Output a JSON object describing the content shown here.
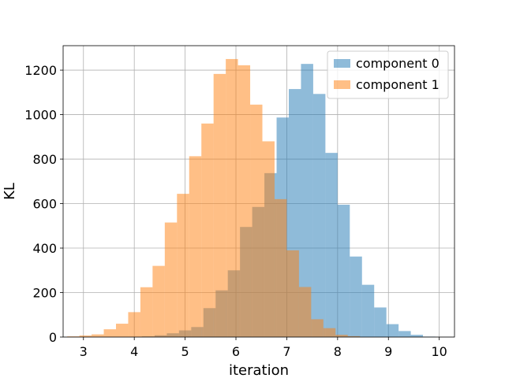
{
  "chart_data": {
    "type": "bar",
    "xlabel": "iteration",
    "ylabel": "KL",
    "xlim": [
      2.6,
      10.3
    ],
    "ylim": [
      0,
      1310
    ],
    "xticks": [
      3,
      4,
      5,
      6,
      7,
      8,
      9,
      10
    ],
    "yticks": [
      0,
      200,
      400,
      600,
      800,
      1000,
      1200
    ],
    "grid": true,
    "legend_position": "top-right",
    "series": [
      {
        "name": "component 0",
        "color": "#1f77b4",
        "opacity": 0.5,
        "bins": [
          [
            4.15,
            4.4,
            3
          ],
          [
            4.4,
            4.64,
            8
          ],
          [
            4.64,
            4.88,
            17
          ],
          [
            4.88,
            5.12,
            30
          ],
          [
            5.12,
            5.36,
            45
          ],
          [
            5.36,
            5.6,
            130
          ],
          [
            5.6,
            5.84,
            210
          ],
          [
            5.84,
            6.08,
            300
          ],
          [
            6.08,
            6.32,
            495
          ],
          [
            6.32,
            6.56,
            585
          ],
          [
            6.56,
            6.8,
            737
          ],
          [
            6.8,
            7.04,
            987
          ],
          [
            7.04,
            7.28,
            1115
          ],
          [
            7.28,
            7.52,
            1228
          ],
          [
            7.52,
            7.76,
            1093
          ],
          [
            7.76,
            8.0,
            828
          ],
          [
            8.0,
            8.24,
            595
          ],
          [
            8.24,
            8.48,
            362
          ],
          [
            8.48,
            8.72,
            235
          ],
          [
            8.72,
            8.96,
            133
          ],
          [
            8.96,
            9.2,
            58
          ],
          [
            9.2,
            9.44,
            27
          ],
          [
            9.44,
            9.68,
            10
          ],
          [
            9.68,
            9.92,
            2
          ]
        ]
      },
      {
        "name": "component 1",
        "color": "#ff7f0e",
        "opacity": 0.5,
        "bins": [
          [
            2.68,
            2.92,
            3
          ],
          [
            2.92,
            3.16,
            7
          ],
          [
            3.16,
            3.4,
            12
          ],
          [
            3.4,
            3.64,
            35
          ],
          [
            3.64,
            3.88,
            60
          ],
          [
            3.88,
            4.12,
            112
          ],
          [
            4.12,
            4.36,
            224
          ],
          [
            4.36,
            4.6,
            320
          ],
          [
            4.6,
            4.84,
            515
          ],
          [
            4.84,
            5.08,
            644
          ],
          [
            5.08,
            5.32,
            813
          ],
          [
            5.32,
            5.56,
            960
          ],
          [
            5.56,
            5.8,
            1183
          ],
          [
            5.8,
            6.04,
            1250
          ],
          [
            6.04,
            6.28,
            1222
          ],
          [
            6.28,
            6.52,
            1045
          ],
          [
            6.52,
            6.76,
            880
          ],
          [
            6.76,
            7.0,
            620
          ],
          [
            7.0,
            7.24,
            390
          ],
          [
            7.24,
            7.48,
            225
          ],
          [
            7.48,
            7.72,
            80
          ],
          [
            7.72,
            7.96,
            40
          ],
          [
            7.96,
            8.2,
            10
          ],
          [
            8.2,
            8.44,
            4
          ]
        ]
      }
    ]
  }
}
